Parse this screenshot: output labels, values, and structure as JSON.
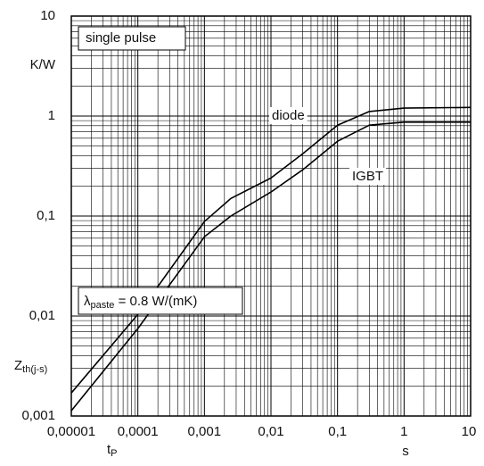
{
  "chart_data": {
    "type": "line",
    "log_x": true,
    "log_y": true,
    "grid": true,
    "minor_grid": true,
    "y_unit": "K/W",
    "y_label": {
      "main": "Z",
      "sub": "th(j-s)"
    },
    "x_unit": "s",
    "x_label": {
      "main": "t",
      "sub": "P"
    },
    "annotations": [
      "single pulse"
    ],
    "paste_note": {
      "symbol": "λ",
      "sub": "paste",
      "text": " = 0.8 W/(mK)"
    },
    "xlim": [
      1e-05,
      10
    ],
    "ylim": [
      0.001,
      10
    ],
    "xticks": [
      {
        "value": 1e-05,
        "label": "0,00001"
      },
      {
        "value": 0.0001,
        "label": "0,0001"
      },
      {
        "value": 0.001,
        "label": "0,001"
      },
      {
        "value": 0.01,
        "label": "0,01"
      },
      {
        "value": 0.1,
        "label": "0,1"
      },
      1,
      10
    ],
    "yticks": [
      {
        "value": 0.001,
        "label": "0,001"
      },
      {
        "value": 0.01,
        "label": "0,01"
      },
      {
        "value": 0.1,
        "label": "0,1"
      },
      1,
      10
    ],
    "x": [
      1e-05,
      0.0001,
      0.001,
      0.0025,
      0.01,
      0.03,
      0.1,
      0.3,
      1,
      10
    ],
    "series": [
      {
        "name": "diode",
        "color": "#000000",
        "values": [
          0.0017,
          0.0104,
          0.088,
          0.15,
          0.24,
          0.42,
          0.81,
          1.11,
          1.2,
          1.22
        ]
      },
      {
        "name": "IGBT",
        "color": "#000000",
        "values": [
          0.00113,
          0.0075,
          0.062,
          0.1,
          0.174,
          0.29,
          0.56,
          0.81,
          0.87,
          0.87
        ]
      }
    ]
  }
}
